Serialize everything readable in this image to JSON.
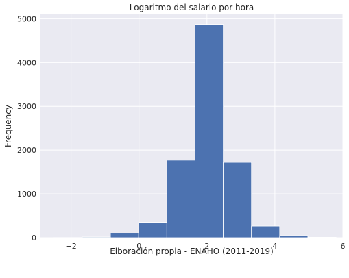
{
  "chart_data": {
    "type": "bar",
    "title": "Logaritmo del salario por hora",
    "xlabel": "Elboración propia - ENAHO (2011-2019)",
    "ylabel": "Frequency",
    "xlim": [
      -2.9,
      6.0
    ],
    "ylim": [
      0,
      5100
    ],
    "x_ticks": [
      -2,
      0,
      2,
      4,
      6
    ],
    "x_tick_labels": [
      "−2",
      "0",
      "2",
      "4",
      "6"
    ],
    "y_ticks": [
      0,
      1000,
      2000,
      3000,
      4000,
      5000
    ],
    "y_tick_labels": [
      "0",
      "1000",
      "2000",
      "3000",
      "4000",
      "5000"
    ],
    "bins": [
      {
        "x0": -2.5,
        "x1": -1.67,
        "value": 3
      },
      {
        "x0": -1.67,
        "x1": -0.84,
        "value": 15
      },
      {
        "x0": -0.84,
        "x1": -0.01,
        "value": 100
      },
      {
        "x0": -0.01,
        "x1": 0.82,
        "value": 350
      },
      {
        "x0": 0.82,
        "x1": 1.65,
        "value": 1770
      },
      {
        "x0": 1.65,
        "x1": 2.48,
        "value": 4870
      },
      {
        "x0": 2.48,
        "x1": 3.31,
        "value": 1720
      },
      {
        "x0": 3.31,
        "x1": 4.14,
        "value": 265
      },
      {
        "x0": 4.14,
        "x1": 4.97,
        "value": 45
      },
      {
        "x0": 4.97,
        "x1": 5.8,
        "value": 10
      }
    ],
    "grid": true,
    "colors": {
      "bar": "#4c72b0",
      "plot_bg": "#eaeaf2",
      "grid": "#ffffff",
      "text": "#262626"
    }
  }
}
